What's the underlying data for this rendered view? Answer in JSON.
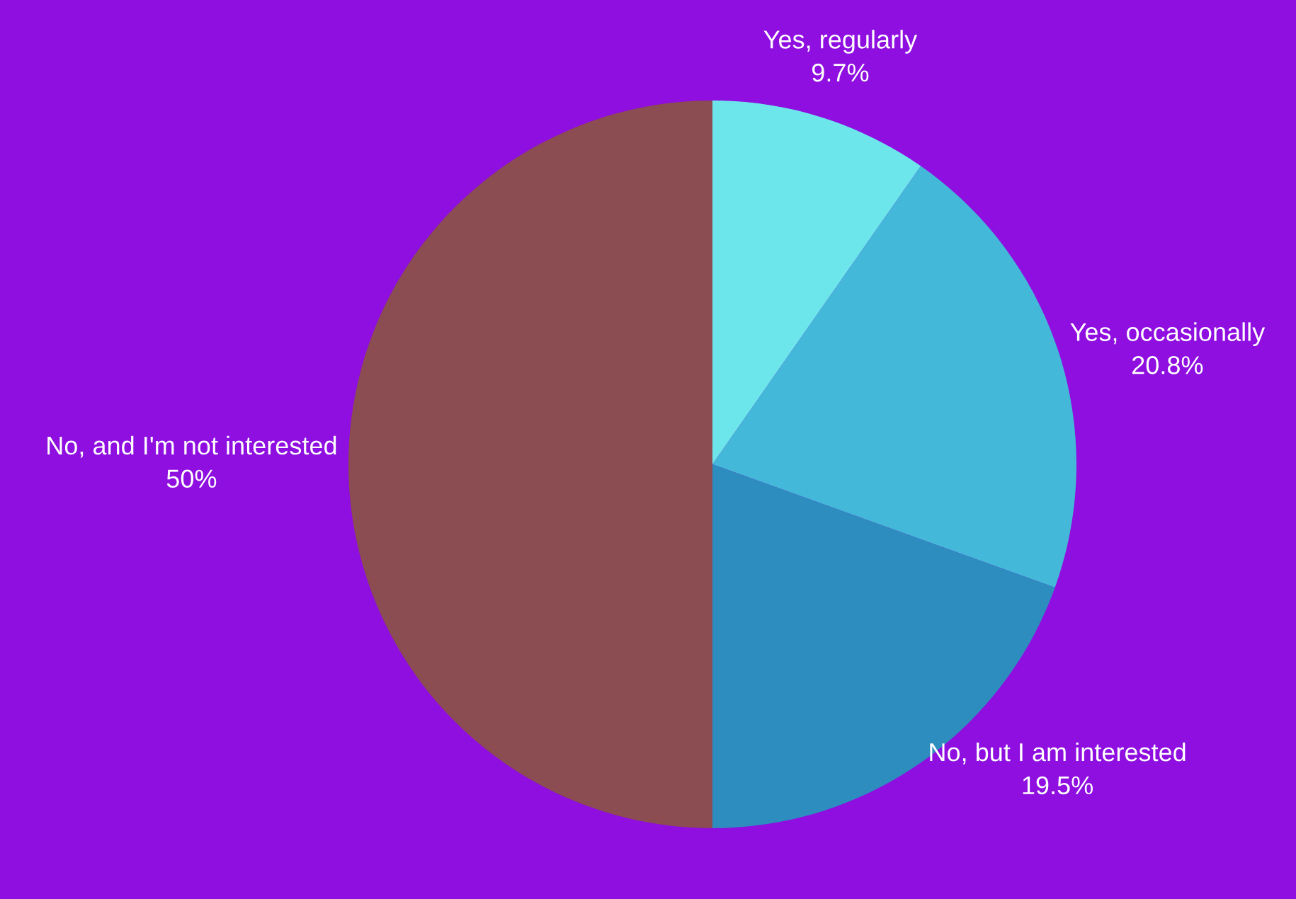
{
  "chart_data": {
    "type": "pie",
    "categories": [
      "Yes, regularly",
      "Yes, occasionally",
      "No, but I am interested",
      "No, and I'm not interested"
    ],
    "values": [
      9.7,
      20.8,
      19.5,
      50
    ],
    "colors": [
      "#6ce6ea",
      "#44b8d8",
      "#2e8dbf",
      "#8b4c52"
    ],
    "value_labels": [
      "9.7%",
      "20.8%",
      "19.5%",
      "50%"
    ]
  }
}
